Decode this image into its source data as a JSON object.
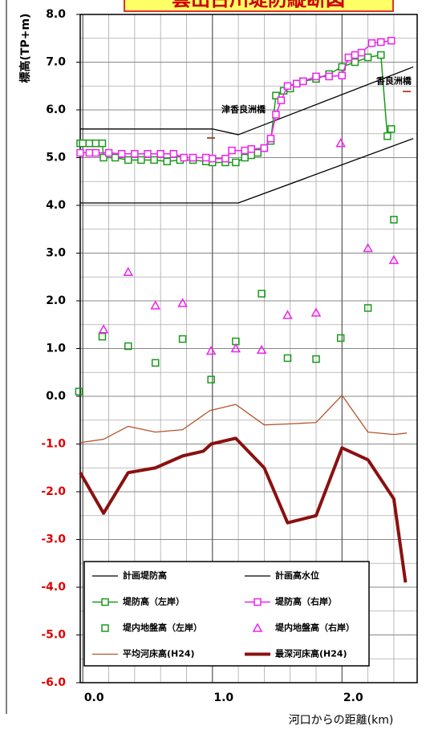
{
  "chart_data": {
    "type": "line",
    "title": "雲出古川堤防縦断図",
    "ylabel": "標高(TP+m)",
    "xlabel": "河口からの距離(km)",
    "annotations": [
      {
        "text": "津香良洲橋",
        "x": 1.24,
        "y": 6.0
      },
      {
        "text": "香良洲橋",
        "x": 2.4,
        "y": 6.6
      }
    ],
    "xlim": [
      -0.02,
      2.58
    ],
    "ylim": [
      -6,
      8
    ],
    "xticks": [
      {
        "value": 0,
        "label": "0.0"
      },
      {
        "value": 1,
        "label": "1.0"
      },
      {
        "value": 2,
        "label": "2.0"
      }
    ],
    "yticks": [
      {
        "value": 8,
        "label": "8.0"
      },
      {
        "value": 7,
        "label": "7.0"
      },
      {
        "value": 6,
        "label": "6.0"
      },
      {
        "value": 5,
        "label": "5.0"
      },
      {
        "value": 4,
        "label": "4.0"
      },
      {
        "value": 3,
        "label": "3.0"
      },
      {
        "value": 2,
        "label": "2.0"
      },
      {
        "value": 1,
        "label": "1.0"
      },
      {
        "value": 0,
        "label": "0.0"
      },
      {
        "value": -1,
        "label": "-1.0"
      },
      {
        "value": -2,
        "label": "-2.0"
      },
      {
        "value": -3,
        "label": "-3.0"
      },
      {
        "value": -4,
        "label": "-4.0"
      },
      {
        "value": -5,
        "label": "-5.0"
      },
      {
        "value": -6,
        "label": "-6.0"
      }
    ],
    "x_minor_grid": [
      0.2,
      0.4,
      0.6,
      0.8,
      1.2,
      1.4,
      1.6,
      1.8,
      2.2,
      2.4
    ],
    "y_minor_grid": [
      7.5,
      6.5,
      5.5,
      4.5,
      3.5,
      2.5,
      1.5,
      0.5,
      -0.5,
      -1.5,
      -2.5,
      -3.5,
      -4.5,
      -5.5
    ],
    "grid": true,
    "negative_tick_color": "#e00000",
    "series": [
      {
        "name": "計画堤防高",
        "color": "#000000",
        "style": "line",
        "width": 1.3,
        "x": [
          -0.02,
          1.0,
          1.2,
          2.55
        ],
        "values": [
          5.6,
          5.6,
          5.48,
          6.9
        ]
      },
      {
        "name": "計画高水位",
        "color": "#000000",
        "style": "line",
        "width": 1.3,
        "x": [
          -0.02,
          1.2,
          2.55
        ],
        "values": [
          4.05,
          4.05,
          5.4
        ]
      },
      {
        "name": "堤防高（左岸）",
        "color": "#1a9a1a",
        "style": "line+marker",
        "marker": "square",
        "width": 1.5,
        "x": [
          -0.02,
          0.0,
          0.05,
          0.1,
          0.15,
          0.16,
          0.25,
          0.35,
          0.45,
          0.55,
          0.65,
          0.75,
          0.85,
          0.95,
          1.0,
          1.1,
          1.18,
          1.25,
          1.3,
          1.35,
          1.4,
          1.45,
          1.49,
          1.55,
          1.6,
          1.65,
          1.7,
          1.8,
          1.9,
          2.0,
          2.1,
          2.2,
          2.3,
          2.35,
          2.38
        ],
        "values": [
          5.3,
          5.3,
          5.3,
          5.3,
          5.3,
          5.0,
          5.0,
          4.95,
          4.95,
          4.95,
          4.92,
          4.95,
          4.95,
          4.92,
          4.9,
          4.9,
          4.9,
          5.0,
          5.05,
          5.1,
          5.2,
          5.35,
          6.3,
          6.4,
          6.45,
          6.55,
          6.6,
          6.65,
          6.75,
          6.9,
          7.0,
          7.1,
          7.15,
          5.45,
          5.6
        ]
      },
      {
        "name": "堤防高（右岸）",
        "color": "#ee22ee",
        "style": "line+marker",
        "marker": "square",
        "width": 1.5,
        "x": [
          -0.02,
          0.05,
          0.1,
          0.2,
          0.3,
          0.4,
          0.5,
          0.6,
          0.7,
          0.78,
          0.85,
          0.95,
          1.0,
          1.1,
          1.15,
          1.25,
          1.3,
          1.4,
          1.45,
          1.49,
          1.53,
          1.58,
          1.65,
          1.7,
          1.8,
          1.9,
          2.0,
          2.05,
          2.1,
          2.15,
          2.23,
          2.3,
          2.38
        ],
        "values": [
          5.1,
          5.1,
          5.1,
          5.1,
          5.08,
          5.08,
          5.08,
          5.08,
          5.08,
          5.0,
          5.0,
          5.0,
          4.98,
          4.98,
          5.15,
          5.15,
          5.18,
          5.2,
          5.4,
          5.9,
          6.2,
          6.5,
          6.55,
          6.6,
          6.7,
          6.7,
          6.72,
          7.1,
          7.15,
          7.2,
          7.4,
          7.42,
          7.45
        ]
      },
      {
        "name": "堤内地盤高（左岸）",
        "color": "#1a9a1a",
        "style": "marker",
        "marker": "square",
        "x": [
          -0.03,
          0.15,
          0.35,
          0.56,
          0.77,
          0.99,
          1.18,
          1.38,
          1.58,
          1.8,
          1.99,
          2.2,
          2.4
        ],
        "values": [
          0.1,
          1.25,
          1.05,
          0.7,
          1.2,
          0.35,
          1.15,
          2.15,
          0.8,
          0.78,
          1.22,
          1.85,
          3.7
        ]
      },
      {
        "name": "堤内地盤高（右岸）",
        "color": "#ee22ee",
        "style": "marker",
        "marker": "triangle",
        "x": [
          0.16,
          0.35,
          0.56,
          0.77,
          0.99,
          1.18,
          1.38,
          1.58,
          1.8,
          1.99,
          2.2,
          2.4
        ],
        "values": [
          1.4,
          2.6,
          1.9,
          1.95,
          0.95,
          1.0,
          0.97,
          1.7,
          1.75,
          5.3,
          3.1,
          2.85
        ]
      },
      {
        "name": "平均河床高(H24)",
        "color": "#b5542a",
        "style": "line",
        "width": 1.3,
        "x": [
          -0.02,
          0.16,
          0.35,
          0.56,
          0.77,
          0.98,
          1.18,
          1.4,
          1.58,
          1.8,
          2.0,
          2.2,
          2.4,
          2.5
        ],
        "values": [
          -0.97,
          -0.9,
          -0.63,
          -0.75,
          -0.7,
          -0.3,
          -0.17,
          -0.6,
          -0.58,
          -0.55,
          0.02,
          -0.75,
          -0.8,
          -0.77
        ]
      },
      {
        "name": "最深河床高(H24)",
        "color": "#8b1010",
        "style": "line",
        "width": 4,
        "x": [
          -0.02,
          0.16,
          0.35,
          0.56,
          0.77,
          0.93,
          0.99,
          1.18,
          1.4,
          1.58,
          1.8,
          2.0,
          2.2,
          2.4,
          2.49
        ],
        "values": [
          -1.6,
          -2.45,
          -1.6,
          -1.5,
          -1.25,
          -1.15,
          -1.0,
          -0.88,
          -1.5,
          -2.65,
          -2.5,
          -1.08,
          -1.33,
          -2.15,
          -3.9
        ]
      }
    ]
  }
}
